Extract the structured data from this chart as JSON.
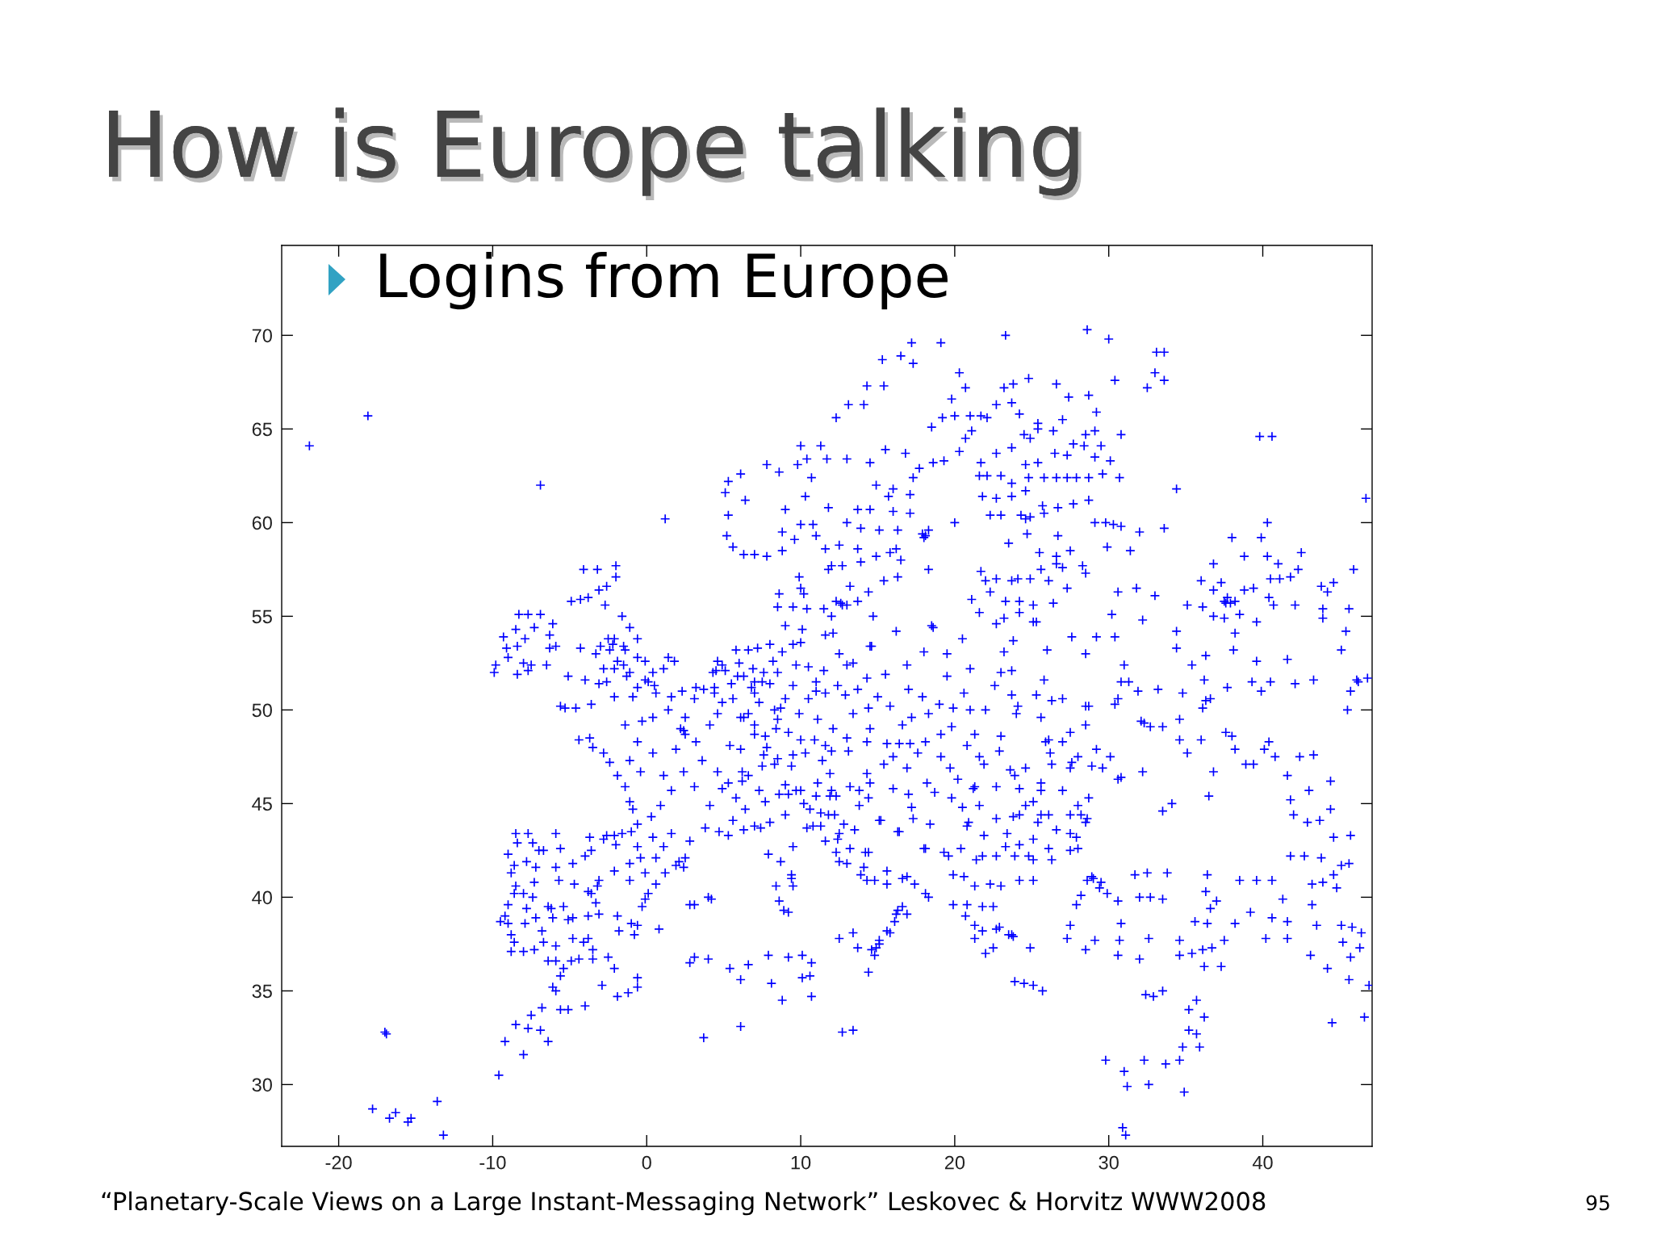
{
  "chart_data": {
    "type": "scatter",
    "title": "How is Europe talking",
    "subtitle": "Logins from Europe",
    "annotations": [
      "“Planetary-Scale Views on a Large Instant-Messaging Network” Leskovec & Horvitz WWW2008",
      "95"
    ],
    "xlim": [
      -23.7,
      47.1
    ],
    "ylim": [
      26.7,
      74.8
    ],
    "xticks": [
      -20,
      -10,
      0,
      10,
      20,
      30,
      40
    ],
    "yticks": [
      30,
      35,
      40,
      45,
      50,
      55,
      60,
      65,
      70
    ],
    "grid": false,
    "marker": "cross",
    "series": [
      {
        "color": "#0000ff",
        "x": [
          -21.9,
          -18.1,
          -6.9,
          1.2,
          -17.8,
          -16.7,
          -16.3,
          -15.5,
          -15.3,
          -13.6,
          -13.2,
          -17.0,
          -16.9,
          -9.6,
          -8.0,
          -9.2,
          -8.5,
          -7.7,
          -7.5,
          -6.9,
          -6.4,
          -6.8,
          -5.6,
          -5.1,
          -4.0,
          -6.1,
          -5.9,
          -2.9,
          -1.9,
          -1.2,
          -0.6,
          -0.6,
          2.8,
          3.1,
          4.0,
          3.7,
          5.4,
          6.1,
          6.6,
          6.1,
          7.9,
          8.1,
          8.8,
          9.2,
          10.1,
          10.7,
          10.1,
          10.6,
          10.7,
          12.7,
          13.4,
          29.8,
          31.0,
          31.2,
          32.3,
          32.6,
          30.9,
          31.1,
          34.8,
          35.2,
          35.7,
          35.7,
          36.2,
          35.2,
          34.9,
          33.7,
          35.9,
          34.6,
          32.4,
          32.9,
          33.5,
          44.5,
          46.6,
          46.9,
          -9.0,
          -8.6,
          -8.8,
          -8.5,
          -8.6,
          -9.0,
          -9.2,
          -9.5,
          -9.0,
          -8.8,
          -8.6,
          -8.8,
          -8.0,
          -7.3,
          -8.5,
          -8.4,
          -7.7,
          -7.4,
          -7.0,
          -6.7,
          -7.8,
          -7.2,
          -7.3,
          -8.0,
          -7.4,
          -7.8,
          -7.2,
          -7.9,
          -6.8,
          -6.4,
          -6.1,
          -5.9,
          -5.6,
          -5.9,
          -5.7,
          -6.2,
          -5.9,
          -5.9,
          -6.4,
          -5.6,
          -5.4,
          -4.4,
          -4.9,
          -3.8,
          -3.5,
          -4.8,
          -4.1,
          -3.5,
          -4.7,
          -3.8,
          -3.6,
          -3.2,
          -3.3,
          -3.8,
          -3.1,
          -4.8,
          -1.9,
          -1.8,
          -0.8,
          -1.0,
          -0.6,
          -0.3,
          -0.1,
          0.1,
          0.6,
          1.2,
          1.9,
          2.1,
          2.4,
          2.5,
          0.8,
          -0.1,
          -1.1,
          -2.1,
          -3.1,
          -4.0,
          -4.8,
          -3.6,
          -3.7,
          -2.8,
          -2.6,
          -2.1,
          -1.6,
          -1.0,
          -2.0,
          -0.6,
          -0.4,
          -1.1,
          0.6,
          1.1,
          -5.4,
          -5.1,
          -6.7,
          -2.5,
          -2.1,
          2.8,
          3.1,
          4.0,
          4.2,
          -5.6,
          -5.3,
          -4.4,
          -3.7,
          -3.5,
          -2.8,
          -2.4,
          -1.9,
          -1.4,
          -1.1,
          -0.9,
          -0.6,
          0.3,
          0.9,
          1.6,
          2.4,
          1.9,
          0.4,
          -0.6,
          -1.4,
          -0.3,
          0.4,
          1.4,
          2.5,
          3.2,
          2.2,
          2.5,
          2.4,
          4.1,
          4.6,
          3.6,
          4.6,
          5.3,
          4.9,
          5.8,
          6.4,
          5.6,
          4.7,
          5.3,
          6.3,
          7.0,
          7.4,
          3.8,
          2.8,
          1.6,
          0.4,
          4.1,
          3.1,
          1.1,
          -0.4,
          -1.1,
          6.1,
          7.0,
          6.3,
          5.4,
          6.2,
          7.7,
          3.1,
          2.3,
          1.6,
          -9.9,
          -9.8,
          -9.3,
          -9.1,
          -8.5,
          -8.3,
          -7.7,
          -7.3,
          -6.9,
          -6.3,
          -6.1,
          -5.9,
          -6.3,
          -7.5,
          -8.4,
          -7.7,
          -8.0,
          -6.5,
          -9.0,
          -8.4,
          -7.9,
          -4.9,
          -4.3,
          -3.8,
          -3.1,
          -2.6,
          -2.0,
          -2.0,
          -3.2,
          -4.1,
          -2.7,
          -1.6,
          -1.1,
          -2.1,
          -2.4,
          -1.4,
          -0.6,
          -2.1,
          -1.1,
          0.1,
          -0.1,
          1.1,
          -3.1,
          -2.1,
          -0.9,
          0.6,
          -3.6,
          -4.6,
          1.4,
          1.8,
          -2.5,
          -0.6,
          -0.1,
          -1.9,
          -2.8,
          -3.3,
          -4.3,
          0.4,
          -0.6,
          -5.1,
          -1.5,
          -2.2,
          -3.0,
          -1.3,
          -2.6,
          0.5,
          -4.0,
          -1.5,
          5.1,
          5.3,
          6.1,
          6.4,
          5.3,
          5.2,
          5.6,
          6.3,
          7.0,
          7.8,
          8.8,
          7.8,
          8.6,
          10.0,
          9.8,
          10.7,
          10.3,
          9.0,
          8.8,
          10.0,
          10.8,
          10.4,
          11.3,
          11.7,
          13.0,
          12.3,
          13.1,
          14.1,
          14.3,
          15.4,
          15.3,
          16.5,
          17.3,
          17.2,
          19.1,
          23.3,
          28.6,
          30.0,
          33.1,
          33.6,
          11.0,
          9.6,
          14.5,
          15.5,
          16.8,
          17.3,
          17.7,
          18.6,
          19.3,
          14.9,
          16.0,
          17.1,
          15.7,
          13.7,
          14.5,
          16.0,
          17.1,
          11.8,
          13.0,
          13.9,
          15.1,
          16.3,
          17.9,
          18.1,
          18.3,
          18.0,
          20.0,
          11.6,
          12.5,
          13.7,
          14.9,
          15.8,
          16.5,
          11.8,
          12.0,
          12.7,
          13.9,
          15.4,
          16.3,
          13.2,
          14.4,
          12.3,
          12.7,
          13.7,
          13.0,
          14.7,
          18.3,
          16.2,
          20.3,
          20.7,
          21.1,
          18.5,
          19.2,
          20.0,
          21.0,
          21.7,
          22.1,
          19.8,
          20.3,
          20.7,
          23.2,
          23.8,
          24.8,
          26.6,
          30.4,
          33.0,
          33.6,
          32.5,
          27.4,
          28.7,
          29.2,
          22.7,
          23.7,
          24.2,
          25.4,
          26.4,
          27.0,
          24.5,
          24.9,
          25.4,
          28.5,
          29.1,
          30.8,
          27.7,
          28.4,
          29.5,
          26.5,
          27.3,
          29.1,
          30.1,
          22.7,
          23.7,
          24.6,
          25.4,
          21.7,
          21.6,
          22.1,
          23.0,
          23.7,
          24.8,
          25.8,
          26.6,
          27.3,
          27.9,
          28.7,
          29.6,
          30.7,
          21.8,
          22.7,
          23.7,
          24.6,
          25.7,
          26.7,
          27.7,
          28.7,
          22.3,
          23.0,
          24.3,
          24.9,
          25.8,
          24.6,
          29.8,
          30.3,
          29.1,
          30.8,
          32.0,
          33.6,
          29.9,
          31.4,
          34.4,
          46.7,
          39.8,
          40.6,
          21.7,
          22.0,
          22.7,
          23.7,
          24.1,
          24.9,
          26.1,
          27.3,
          21.1,
          22.3,
          23.3,
          24.2,
          25.1,
          26.4,
          25.6,
          26.6,
          27.0,
          25.5,
          26.6,
          27.5,
          28.3,
          28.5,
          21.6,
          23.2,
          25.1,
          25.3,
          24.2,
          22.7,
          24.7,
          26.7,
          23.5,
          30.6,
          31.8,
          33.0,
          30.2,
          32.2,
          36.0,
          36.8,
          37.3,
          37.5,
          37.6,
          37.9,
          38.2,
          37.7,
          35.1,
          36.1,
          36.8,
          37.5,
          38.5,
          38.8,
          39.4,
          39.6,
          36.8,
          38.0,
          38.8,
          39.9,
          40.3,
          40.3,
          40.5,
          41.1,
          41.8,
          42.3,
          41.0,
          42.5,
          40.4,
          40.7,
          42.1,
          43.8,
          44.2,
          43.9,
          43.9,
          44.6,
          45.6,
          45.9,
          45.4,
          45.1,
          41.6,
          39.6,
          38.2,
          38.1,
          36.3,
          34.4,
          34.4,
          35.4,
          36.2,
          37.7,
          39.3,
          39.9,
          40.5,
          42.1,
          43.3,
          46.1,
          45.7,
          46.8,
          45.5,
          46.2,
          34.8,
          36.3,
          31.0,
          30.8,
          31.3,
          31.9,
          33.2,
          27.6,
          30.4,
          28.7,
          30.4,
          30.6,
          25.8,
          26.3,
          25.3,
          24.1,
          23.7,
          26.1,
          27.5,
          28.5,
          29.2,
          29.6,
          30.1,
          30.6,
          32.2,
          30.8,
          32.3,
          32.7,
          33.5,
          34.6,
          36.1,
          36.6,
          34.6,
          35.1,
          36.0,
          36.8,
          37.6,
          38.0,
          38.2,
          38.9,
          39.4,
          40.1,
          40.4,
          40.8,
          42.4,
          43.3,
          41.6,
          44.4,
          43.0,
          44.4,
          41.8,
          42.0,
          42.9,
          43.7,
          44.6,
          45.7,
          41.8,
          42.7,
          43.8,
          45.1,
          45.6,
          44.6,
          43.9,
          44.8,
          43.2,
          41.3,
          43.2,
          40.6,
          41.6,
          43.5,
          45.1,
          45.8,
          46.4,
          45.2,
          46.3,
          43.1,
          44.2,
          45.7,
          45.6,
          40.2,
          41.6,
          38.5,
          39.6,
          40.6,
          36.4,
          36.3,
          37.0,
          36.6,
          35.6,
          36.4,
          37.5,
          36.7,
          36.1,
          36.2,
          37.3,
          35.4,
          34.6,
          34.6,
          38.2,
          39.2,
          29.5,
          28.9,
          28.6,
          29.0,
          29.4,
          29.9,
          30.6,
          30.8,
          32.0,
          32.7,
          33.5,
          33.8,
          31.7,
          28.2,
          27.9,
          27.5,
          27.3,
          28.5,
          29.1,
          30.7,
          30.6,
          32.0,
          32.6,
          32.5,
          33.5,
          34.1,
          36.5,
          19.9,
          20.8,
          20.7,
          21.3,
          21.8,
          22.0,
          22.5,
          21.3,
          22.7,
          23.5,
          23.7,
          23.8,
          24.9,
          23.9,
          24.5,
          25.1,
          25.7,
          22.9,
          21.8,
          22.5,
          21.3,
          22.3,
          23.0,
          24.2,
          25.1,
          19.9,
          19.6,
          20.4,
          20.6,
          21.4,
          21.8,
          22.7,
          23.9,
          25.1,
          26.3,
          27.5,
          28.0,
          28.5,
          28.0,
          23.4,
          24.2,
          25.1,
          26.1,
          26.6,
          27.5,
          27.9,
          23.3,
          24.8,
          20.8,
          21.6,
          21.3,
          22.7,
          23.9,
          24.6,
          25.6,
          26.3,
          27.5,
          28.0,
          28.7,
          28.2,
          27.5,
          25.6,
          25.4,
          24.2,
          22.7,
          25.1,
          27.0,
          24.6,
          26.1,
          23.6,
          27.6,
          21.2,
          28.6,
          25.6,
          28.9,
          24.2,
          23.8,
          21.9,
          26.2,
          22.9,
          20.5,
          19.8,
          21.9,
          19.3,
          20.9,
          18.4,
          17.2,
          18.7,
          17.0,
          15.2,
          16.4,
          18.1,
          14.4,
          13.8,
          15.1,
          16.3,
          17.3,
          18.0,
          9.2,
          7.7,
          9.0,
          11.3,
          12.3,
          11.9,
          11.0,
          13.8,
          10.0,
          11.3,
          10.4,
          12.5,
          14.3,
          13.5,
          12.4,
          16.9,
          9.7,
          10.6,
          12.2,
          11.1,
          8.6,
          10.2,
          14.2,
          16.3,
          15.6,
          13.4,
          15.1,
          10.8,
          11.6,
          12.3,
          13.0,
          13.9,
          14.8,
          15.6,
          16.6,
          17.4,
          18.1,
          18.3,
          16.6,
          16.1,
          15.8,
          15.1,
          14.6,
          14.4,
          13.7,
          12.5,
          14.9,
          14.8,
          16.2,
          16.9,
          11.8,
          12.5,
          13.2,
          14.1,
          14.4,
          15.6,
          12.0,
          13.2,
          7.9,
          8.7,
          9.4,
          9.5,
          8.4,
          8.6,
          8.9,
          9.2,
          9.5,
          9.4,
          8.0,
          7.3,
          12.8,
          11.9,
          4.9,
          4.5,
          5.1,
          4.3,
          6.0,
          5.5,
          6.6,
          5.8,
          4.4,
          3.7,
          4.4,
          5.6,
          3.2,
          4.9,
          6.1,
          6.9,
          5.9,
          4.6,
          7.0,
          6.8,
          7.0,
          7.5,
          8.0,
          7.6,
          8.5,
          9.7,
          10.5,
          8.8,
          10.0,
          10.1,
          11.6,
          12.1,
          13.4,
          13.0,
          12.4,
          13.7,
          11.6,
          11.0,
          9.5,
          8.7,
          8.3,
          8.5,
          8.4,
          9.2,
          10.0,
          10.9,
          11.6,
          12.1,
          11.1,
          9.9,
          7.8,
          7.0,
          6.6,
          14.3,
          14.5,
          12.5,
          9.0,
          11.0,
          8.0,
          7.2,
          13.0,
          12.0,
          10.3,
          9.5,
          7.3,
          9.0,
          10.5,
          12.9,
          6.3,
          8.2,
          11.5,
          9.5,
          12.6,
          10.2,
          10.4,
          9.9,
          8.6,
          9.5,
          11.5,
          12.0,
          8.5,
          10.0,
          8.5,
          7.6,
          7.5,
          6.6,
          6.2,
          9.0,
          9.4,
          8.3,
          16.4,
          15.4,
          14.3,
          13.1,
          11.4,
          14.3,
          15.6,
          16.0,
          14.4,
          16.6,
          18.3,
          13.4,
          15.8,
          14.5,
          17.2,
          15.0,
          17.1,
          19.1,
          21.3,
          18.1,
          19.8,
          19.1,
          21.6,
          20.2,
          18.2,
          17.6,
          20.8,
          19.7,
          16.9,
          21.0,
          19.9,
          19.0,
          17.0,
          16.9,
          19.5,
          18.6,
          18.0,
          22.6,
          23.2,
          20.5,
          14.6,
          22.0,
          15.5,
          17.9,
          20.6,
          18.5,
          16.2,
          21.0,
          23.0,
          19.5,
          14.5,
          16.0,
          24.0,
          25.6,
          28.5,
          32.1,
          27.0,
          23.0,
          25.9,
          27.0,
          23.8,
          23.7,
          26.0,
          28.5,
          29.2
        ],
        "values": [
          64.1,
          65.7,
          62.0,
          60.2,
          28.7,
          28.2,
          28.5,
          28.0,
          28.2,
          29.1,
          27.3,
          32.8,
          32.7,
          30.5,
          31.6,
          32.3,
          33.2,
          33.0,
          33.7,
          32.9,
          32.3,
          34.1,
          34.0,
          34.0,
          34.2,
          35.2,
          35.0,
          35.3,
          34.7,
          34.9,
          35.7,
          35.2,
          36.5,
          36.8,
          36.7,
          32.5,
          36.2,
          35.6,
          36.4,
          33.1,
          36.9,
          35.4,
          34.5,
          36.8,
          36.9,
          36.5,
          35.7,
          35.8,
          34.7,
          32.8,
          32.9,
          31.3,
          30.7,
          29.9,
          31.3,
          30.0,
          27.7,
          27.3,
          32.0,
          32.9,
          32.7,
          34.5,
          33.6,
          34.0,
          29.6,
          31.1,
          32.0,
          31.3,
          34.8,
          34.7,
          35.0,
          33.3,
          33.6,
          35.3,
          42.3,
          41.7,
          41.3,
          40.6,
          40.2,
          39.6,
          39.0,
          38.7,
          38.6,
          38.0,
          37.6,
          37.1,
          37.1,
          37.2,
          43.4,
          42.9,
          43.4,
          42.9,
          42.5,
          42.5,
          41.9,
          41.6,
          40.8,
          40.2,
          40.0,
          39.4,
          38.9,
          38.6,
          38.2,
          39.5,
          38.9,
          43.4,
          42.6,
          41.6,
          40.9,
          39.4,
          37.4,
          36.6,
          36.6,
          35.8,
          36.2,
          36.7,
          36.6,
          37.8,
          37.2,
          37.8,
          37.6,
          36.7,
          40.7,
          40.3,
          40.2,
          40.6,
          39.7,
          39.0,
          39.1,
          38.9,
          39.0,
          38.2,
          38.0,
          38.6,
          38.5,
          39.5,
          39.9,
          40.2,
          40.7,
          41.3,
          41.7,
          41.9,
          41.6,
          42.1,
          38.3,
          41.3,
          40.9,
          41.4,
          40.9,
          42.2,
          41.8,
          42.5,
          43.2,
          43.1,
          43.3,
          43.3,
          43.4,
          43.5,
          42.8,
          42.7,
          42.1,
          41.8,
          42.1,
          42.7,
          39.5,
          38.8,
          37.6,
          36.8,
          36.2,
          39.6,
          39.6,
          40.0,
          39.9,
          50.2,
          50.1,
          48.4,
          48.5,
          48.0,
          47.7,
          47.2,
          46.5,
          45.9,
          45.1,
          44.7,
          43.9,
          44.3,
          44.9,
          45.7,
          46.7,
          47.9,
          47.7,
          48.3,
          49.2,
          49.4,
          49.6,
          50.0,
          49.6,
          48.3,
          49.0,
          48.7,
          48.9,
          49.2,
          49.8,
          47.3,
          46.7,
          46.1,
          45.8,
          45.3,
          44.7,
          44.1,
          43.5,
          43.3,
          43.6,
          43.8,
          43.7,
          43.7,
          43.0,
          43.4,
          43.2,
          44.9,
          45.9,
          46.5,
          46.7,
          47.3,
          47.9,
          48.7,
          49.6,
          48.1,
          46.7,
          48.6,
          50.6,
          51.0,
          50.7,
          52.0,
          52.4,
          53.9,
          53.3,
          54.3,
          55.1,
          55.1,
          54.4,
          55.1,
          54.0,
          54.6,
          53.4,
          53.3,
          52.4,
          51.9,
          52.1,
          52.5,
          52.4,
          52.8,
          53.4,
          53.8,
          55.8,
          55.9,
          56.0,
          56.4,
          56.6,
          57.1,
          57.7,
          57.5,
          57.5,
          55.6,
          55.0,
          54.4,
          53.8,
          53.2,
          53.2,
          52.8,
          52.2,
          52.0,
          51.5,
          51.6,
          52.2,
          51.4,
          50.7,
          50.7,
          50.9,
          50.3,
          50.1,
          52.8,
          52.6,
          53.8,
          53.8,
          52.6,
          52.6,
          52.2,
          53.0,
          53.3,
          52.0,
          51.2,
          51.8,
          53.4,
          53.5,
          53.4,
          51.8,
          51.5,
          51.3,
          51.6,
          52.4,
          61.6,
          62.2,
          62.6,
          61.2,
          60.4,
          59.3,
          58.7,
          58.3,
          58.3,
          58.2,
          58.5,
          63.1,
          62.7,
          64.1,
          63.1,
          62.4,
          61.4,
          60.7,
          59.5,
          59.9,
          59.9,
          63.4,
          64.1,
          63.4,
          63.4,
          65.6,
          66.3,
          66.3,
          67.3,
          67.3,
          68.7,
          68.9,
          68.5,
          69.6,
          69.6,
          70.0,
          70.3,
          69.8,
          69.1,
          69.1,
          59.3,
          59.1,
          63.2,
          63.9,
          63.7,
          62.4,
          62.9,
          63.2,
          63.3,
          62.0,
          61.8,
          61.5,
          61.4,
          60.7,
          60.7,
          60.6,
          60.5,
          60.8,
          60.0,
          59.7,
          59.6,
          59.6,
          59.4,
          59.3,
          59.6,
          59.2,
          60.0,
          58.6,
          58.8,
          58.6,
          58.2,
          58.4,
          58.0,
          57.5,
          57.7,
          57.7,
          57.9,
          56.9,
          57.1,
          56.6,
          56.3,
          55.8,
          55.6,
          55.8,
          55.6,
          55.0,
          57.5,
          58.6,
          63.8,
          64.5,
          64.9,
          65.1,
          65.6,
          65.7,
          65.7,
          65.7,
          65.6,
          66.6,
          68.0,
          67.2,
          67.2,
          67.4,
          67.7,
          67.4,
          67.6,
          68.0,
          67.6,
          67.2,
          66.7,
          66.8,
          65.9,
          66.3,
          66.4,
          65.8,
          65.3,
          64.9,
          65.5,
          64.7,
          64.5,
          65.0,
          64.7,
          64.9,
          64.7,
          64.2,
          64.1,
          64.1,
          63.7,
          63.6,
          63.5,
          63.3,
          63.7,
          64.0,
          63.1,
          63.2,
          63.2,
          62.5,
          62.5,
          62.5,
          62.1,
          62.4,
          62.4,
          62.4,
          62.4,
          62.4,
          62.4,
          62.6,
          62.4,
          61.4,
          61.3,
          61.4,
          61.7,
          60.9,
          60.8,
          61.0,
          61.2,
          60.4,
          60.4,
          60.4,
          60.3,
          60.5,
          60.2,
          60.0,
          59.9,
          60.0,
          59.8,
          59.5,
          59.7,
          58.7,
          58.5,
          61.8,
          61.3,
          64.6,
          64.6,
          57.4,
          56.9,
          57.0,
          56.9,
          57.0,
          57.0,
          56.9,
          56.5,
          55.9,
          56.3,
          55.8,
          55.8,
          55.6,
          55.7,
          57.5,
          57.8,
          57.6,
          58.4,
          58.2,
          58.5,
          57.7,
          57.3,
          55.2,
          54.9,
          54.7,
          54.7,
          55.2,
          54.6,
          59.4,
          59.3,
          58.9,
          56.3,
          56.5,
          56.1,
          55.1,
          54.8,
          56.9,
          56.4,
          56.8,
          55.8,
          55.7,
          55.7,
          55.8,
          56.0,
          55.6,
          55.5,
          55.0,
          54.9,
          55.1,
          56.4,
          56.5,
          54.7,
          57.8,
          59.2,
          58.2,
          59.2,
          60.0,
          58.2,
          57.0,
          57.0,
          57.1,
          57.5,
          57.8,
          58.4,
          56.0,
          55.6,
          55.6,
          56.6,
          56.3,
          55.4,
          54.9,
          56.8,
          55.4,
          57.5,
          54.2,
          53.2,
          52.7,
          52.6,
          54.1,
          53.2,
          52.9,
          54.2,
          53.3,
          52.4,
          51.6,
          51.2,
          51.5,
          51.0,
          51.5,
          51.4,
          51.6,
          51.6,
          51.0,
          51.7,
          50.0,
          51.5,
          50.9,
          50.5,
          52.4,
          51.5,
          51.5,
          51.0,
          51.1,
          53.9,
          53.9,
          50.2,
          50.3,
          50.6,
          51.6,
          50.5,
          50.8,
          50.2,
          50.8,
          48.4,
          48.8,
          50.2,
          47.9,
          46.9,
          47.5,
          46.3,
          46.7,
          46.4,
          49.3,
          49.1,
          49.1,
          49.5,
          50.1,
          50.6,
          48.4,
          47.7,
          48.4,
          46.7,
          48.8,
          48.6,
          47.9,
          47.1,
          47.1,
          47.9,
          48.3,
          47.5,
          47.5,
          47.6,
          46.5,
          46.2,
          45.7,
          44.7,
          45.2,
          44.4,
          44.0,
          44.1,
          43.2,
          43.3,
          42.2,
          42.2,
          42.1,
          41.7,
          41.8,
          41.2,
          40.8,
          40.5,
          40.7,
          39.9,
          39.6,
          38.9,
          38.7,
          38.5,
          38.5,
          38.4,
          38.1,
          37.6,
          37.3,
          36.9,
          36.2,
          36.8,
          35.6,
          37.8,
          37.8,
          40.9,
          40.9,
          40.9,
          41.2,
          40.3,
          39.8,
          39.4,
          38.7,
          38.6,
          37.7,
          37.3,
          37.2,
          36.3,
          36.3,
          37.0,
          36.9,
          37.7,
          38.6,
          39.2,
          40.8,
          41.1,
          40.9,
          41.0,
          40.5,
          40.2,
          39.8,
          38.6,
          40.0,
          40.0,
          39.9,
          41.3,
          41.2,
          40.1,
          39.6,
          38.5,
          37.8,
          37.2,
          37.7,
          37.7,
          36.9,
          36.7,
          37.8,
          41.3,
          44.6,
          45.0,
          45.4,
          39.6,
          39.6,
          39.0,
          38.5,
          38.2,
          37.0,
          37.3,
          37.8,
          38.3,
          38.0,
          38.0,
          37.9,
          37.3,
          35.5,
          35.4,
          35.3,
          35.0,
          38.4,
          39.5,
          39.5,
          40.6,
          40.7,
          40.6,
          40.9,
          40.9,
          41.2,
          42.2,
          42.6,
          41.1,
          42.0,
          42.2,
          42.2,
          42.2,
          42.0,
          42.0,
          42.5,
          42.6,
          44.0,
          44.9,
          43.4,
          42.8,
          43.1,
          42.6,
          43.6,
          43.4,
          43.2,
          42.7,
          42.2,
          43.8,
          44.9,
          45.9,
          45.9,
          46.5,
          46.9,
          46.1,
          47.1,
          46.9,
          47.5,
          45.3,
          44.4,
          44.4,
          44.4,
          44.0,
          44.4,
          44.2,
          45.1,
          45.7,
          44.9,
          44.4,
          46.8,
          47.2,
          45.8,
          44.2,
          45.7,
          47.0,
          45.8,
          44.3,
          47.1,
          47.7,
          47.8,
          44.8,
          45.3,
          43.3,
          42.4,
          44.0,
          43.9,
          44.8,
          45.6,
          45.5,
          44.1,
          43.5,
          42.6,
          45.3,
          44.9,
          44.1,
          43.5,
          44.2,
          42.6,
          45.5,
          45.1,
          44.4,
          44.5,
          45.4,
          45.4,
          45.4,
          45.7,
          45.7,
          43.8,
          43.7,
          41.9,
          40.9,
          43.6,
          43.1,
          41.1,
          45.7,
          44.7,
          44.4,
          46.1,
          45.5,
          45.0,
          42.4,
          39.3,
          38.2,
          38.1,
          37.5,
          43.8,
          43.0,
          42.4,
          41.8,
          41.2,
          40.9,
          40.7,
          41.0,
          40.7,
          40.2,
          40.0,
          39.5,
          38.7,
          38.1,
          37.7,
          37.2,
          36.0,
          37.3,
          37.8,
          37.3,
          36.9,
          39.1,
          39.1,
          44.4,
          43.4,
          42.6,
          41.6,
          42.4,
          41.4,
          45.7,
          45.9,
          42.3,
          41.9,
          41.2,
          40.6,
          40.6,
          39.8,
          39.3,
          39.2,
          42.7,
          41.0,
          44.0,
          45.7,
          43.9,
          46.6,
          52.4,
          52.1,
          52.1,
          52.0,
          52.5,
          51.4,
          53.2,
          53.2,
          51.2,
          51.1,
          50.9,
          50.6,
          51.2,
          50.4,
          49.6,
          52.2,
          51.8,
          52.6,
          50.9,
          51.2,
          51.5,
          51.5,
          51.4,
          52.0,
          52.0,
          52.4,
          52.3,
          53.1,
          53.6,
          54.3,
          54.0,
          54.1,
          52.5,
          52.4,
          51.3,
          51.1,
          50.9,
          51.0,
          51.3,
          50.1,
          50.0,
          49.5,
          49.0,
          48.8,
          48.4,
          48.4,
          48.1,
          49.0,
          49.5,
          49.8,
          48.0,
          49.2,
          49.8,
          51.7,
          53.4,
          53.0,
          54.5,
          51.5,
          53.5,
          53.3,
          48.5,
          47.8,
          47.7,
          47.6,
          50.4,
          50.6,
          50.6,
          50.8,
          51.8,
          52.6,
          52.1,
          53.5,
          55.7,
          56.2,
          55.4,
          57.1,
          56.2,
          55.5,
          55.4,
          55.0,
          55.5,
          56.5,
          47.4,
          47.6,
          47.0,
          46.5,
          46.2,
          46.0,
          47.0,
          47.1,
          48.2,
          47.1,
          48.3,
          47.8,
          47.3,
          46.6,
          48.2,
          47.5,
          50.1,
          49.2,
          49.8,
          49.8,
          50.2,
          49.0,
          49.6,
          50.7,
          48.2,
          48.7,
          48.7,
          48.3,
          49.1,
          47.5,
          47.5,
          46.3,
          46.1,
          47.7,
          48.1,
          46.9,
          46.9,
          52.2,
          50.1,
          50.3,
          51.1,
          52.4,
          51.8,
          54.4,
          53.1,
          51.3,
          53.1,
          53.8,
          53.4,
          50.0,
          51.9,
          50.7,
          50.9,
          54.5,
          54.2,
          50.0,
          52.0,
          53.0,
          46.1,
          45.8,
          49.8,
          49.6,
          49.2,
          49.4,
          48.3,
          48.6,
          48.3,
          50.6,
          53.7,
          52.1,
          53.2,
          53.0,
          53.9
        ]
      }
    ]
  }
}
